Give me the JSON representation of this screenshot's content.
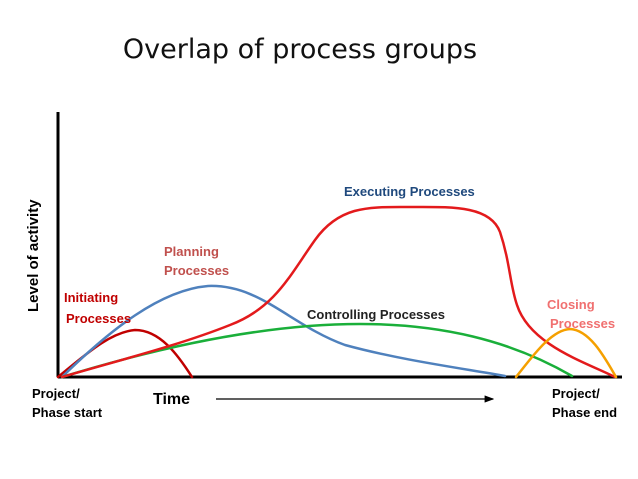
{
  "title": "Overlap of process groups",
  "chart_data": {
    "type": "line",
    "ylabel": "Level of activity",
    "xlabel": "Time",
    "x_start_label": [
      "Project/",
      "Phase start"
    ],
    "x_end_label": [
      "Project/",
      "Phase end"
    ],
    "series": [
      {
        "name": "Initiating Processes",
        "label_lines": [
          "Initiating",
          "Processes"
        ],
        "color": "#c00000"
      },
      {
        "name": "Planning Processes",
        "label_lines": [
          "Planning",
          "Processes"
        ],
        "color": "#4f81bd",
        "label_color": "#c0504d"
      },
      {
        "name": "Executing Processes",
        "label_lines": [
          "Executing Processes"
        ],
        "color": "#e31a1c",
        "label_color": "#1f497d"
      },
      {
        "name": "Controlling Processes",
        "label_lines": [
          "Controlling Processes"
        ],
        "color": "#1aaf3a",
        "label_color": "#222222"
      },
      {
        "name": "Closing Processes",
        "label_lines": [
          "Closing",
          "Processes"
        ],
        "color": "#f5a000",
        "label_color": "#f07070"
      }
    ]
  }
}
